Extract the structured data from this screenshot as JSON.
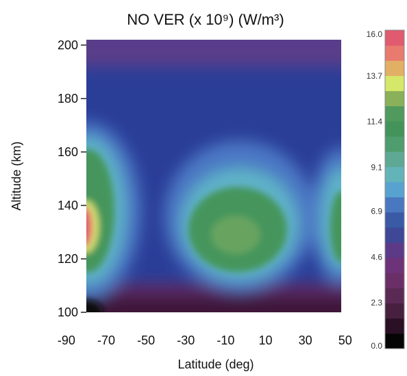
{
  "chart_data": {
    "type": "heatmap",
    "title": "NO VER (x 10⁹) (W/m³)",
    "xlabel": "Latitude (deg)",
    "ylabel": "Altitude (km)",
    "xlim": [
      -80,
      48
    ],
    "ylim": [
      100,
      202
    ],
    "x_ticks": [
      -90,
      -70,
      -50,
      -30,
      -10,
      10,
      30,
      50
    ],
    "x_tick_labels": [
      "-90",
      "-70",
      "-50",
      "-30",
      "-10",
      "10",
      "30",
      "50"
    ],
    "y_ticks": [
      100,
      120,
      140,
      160,
      180,
      200
    ],
    "y_tick_labels": [
      "100",
      "120",
      "140",
      "160",
      "180",
      "200"
    ],
    "colorbar": {
      "min": 0.0,
      "max": 16.0,
      "tick_values": [
        0.0,
        2.3,
        4.6,
        6.9,
        9.1,
        11.4,
        13.7,
        16.0
      ],
      "tick_labels": [
        "0.0",
        "2.3",
        "4.6",
        "6.9",
        "9.1",
        "11.4",
        "13.7",
        "16.0"
      ],
      "colors": [
        "#050505",
        "#2a1024",
        "#47203f",
        "#5a2a55",
        "#6b2f68",
        "#6e3278",
        "#5d3a88",
        "#3f4896",
        "#3a5aa6",
        "#4a78c0",
        "#58a2cf",
        "#63b4b8",
        "#5ea894",
        "#4f9c6e",
        "#43935a",
        "#4f9a5c",
        "#8ab05a",
        "#d6e86a",
        "#e2b065",
        "#e87a6e",
        "#e05a70"
      ]
    },
    "features": [
      {
        "name": "equatorial maximum",
        "latitude": -5,
        "altitude": 130,
        "value": 8.5
      },
      {
        "name": "southern high-latitude maximum",
        "latitude": -80,
        "altitude": 130,
        "value": 14.5
      },
      {
        "name": "northern edge maximum",
        "latitude": 46,
        "altitude": 130,
        "value": 8.0
      }
    ],
    "grid": false
  }
}
